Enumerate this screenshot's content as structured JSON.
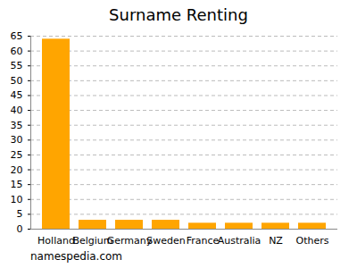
{
  "chart_data": {
    "type": "bar",
    "title": "Surname Renting",
    "caption": "namespedia.com",
    "categories": [
      "Holland",
      "Belgium",
      "Germany",
      "Sweden",
      "France",
      "Australia",
      "NZ",
      "Others"
    ],
    "values": [
      64,
      3,
      3,
      3,
      2,
      2,
      2,
      2
    ],
    "color": "#ffa500",
    "ylim": [
      0,
      65
    ],
    "yticks": [
      0,
      5,
      10,
      15,
      20,
      25,
      30,
      35,
      40,
      45,
      50,
      55,
      60,
      65
    ],
    "grid": true
  }
}
